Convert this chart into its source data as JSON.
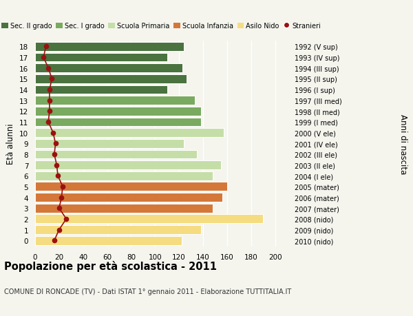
{
  "ages": [
    18,
    17,
    16,
    15,
    14,
    13,
    12,
    11,
    10,
    9,
    8,
    7,
    6,
    5,
    4,
    3,
    2,
    1,
    0
  ],
  "years": [
    "1992 (V sup)",
    "1993 (IV sup)",
    "1994 (III sup)",
    "1995 (II sup)",
    "1996 (I sup)",
    "1997 (III med)",
    "1998 (II med)",
    "1999 (I med)",
    "2000 (V ele)",
    "2001 (IV ele)",
    "2002 (III ele)",
    "2003 (II ele)",
    "2004 (I ele)",
    "2005 (mater)",
    "2006 (mater)",
    "2007 (mater)",
    "2008 (nido)",
    "2009 (nido)",
    "2010 (nido)"
  ],
  "bar_values": [
    124,
    110,
    123,
    126,
    110,
    133,
    138,
    138,
    157,
    124,
    135,
    155,
    148,
    160,
    156,
    148,
    190,
    138,
    122
  ],
  "stranieri": [
    9,
    7,
    11,
    14,
    12,
    12,
    12,
    11,
    15,
    17,
    16,
    18,
    19,
    23,
    22,
    20,
    26,
    20,
    16
  ],
  "bar_colors": [
    "#4a7340",
    "#4a7340",
    "#4a7340",
    "#4a7340",
    "#4a7340",
    "#7aaa60",
    "#7aaa60",
    "#7aaa60",
    "#c5dea8",
    "#c5dea8",
    "#c5dea8",
    "#c5dea8",
    "#c5dea8",
    "#d4783a",
    "#d4783a",
    "#d4783a",
    "#f5dc80",
    "#f5dc80",
    "#f5dc80"
  ],
  "legend_labels": [
    "Sec. II grado",
    "Sec. I grado",
    "Scuola Primaria",
    "Scuola Infanzia",
    "Asilo Nido",
    "Stranieri"
  ],
  "legend_colors": [
    "#4a7340",
    "#7aaa60",
    "#c5dea8",
    "#d4783a",
    "#f5dc80",
    "#9b1010"
  ],
  "stranieri_color": "#9b1010",
  "title": "Popolazione per età scolastica - 2011",
  "subtitle": "COMUNE DI RONCADE (TV) - Dati ISTAT 1° gennaio 2011 - Elaborazione TUTTITALIA.IT",
  "ylabel": "Età alunni",
  "ylabel_right": "Anni di nascita",
  "xlim": [
    0,
    210
  ],
  "xticks": [
    0,
    20,
    40,
    60,
    80,
    100,
    120,
    140,
    160,
    180,
    200
  ],
  "background_color": "#f5f5ee",
  "bar_height": 0.82
}
